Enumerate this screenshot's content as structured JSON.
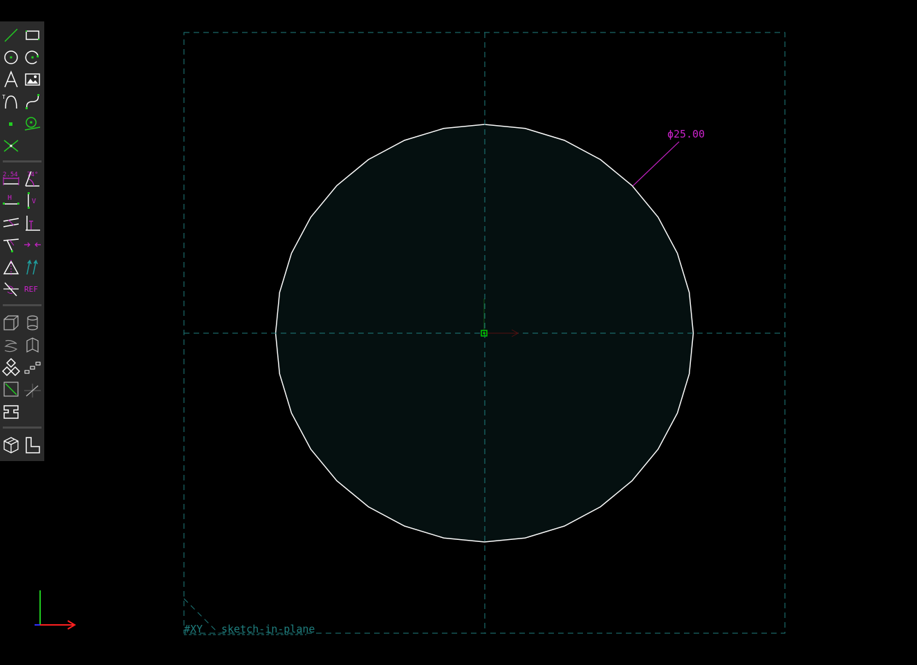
{
  "colors": {
    "background": "#000000",
    "toolbar_bg": "#2b2b2b",
    "request_entity": "#1f7f7f",
    "sketch_line": "#ffffff",
    "region_fill": "#051010",
    "dimension": "#cc22cc",
    "point": "#00cc00",
    "axis_x": "#ff2020",
    "axis_y": "#20cc20"
  },
  "toolbar": {
    "sketch_tools": [
      {
        "name": "line-segment-icon"
      },
      {
        "name": "rectangle-icon"
      },
      {
        "name": "circle-icon"
      },
      {
        "name": "arc-icon"
      },
      {
        "name": "text-icon"
      },
      {
        "name": "image-icon"
      },
      {
        "name": "tangent-arc-icon"
      },
      {
        "name": "cubic-spline-icon"
      },
      {
        "name": "datum-point-icon"
      },
      {
        "name": "workplane-icon"
      },
      {
        "name": "split-curves-icon"
      }
    ],
    "constraint_labels": {
      "distance": "2.54",
      "angle": "74°",
      "horizontal": "H",
      "vertical": "V",
      "reference": "REF"
    }
  },
  "sketch": {
    "workplane_label": "#XY",
    "group_label": "sketch-in-plane",
    "dimension_label": "ϕ25.00",
    "circle_diameter": 25.0
  }
}
